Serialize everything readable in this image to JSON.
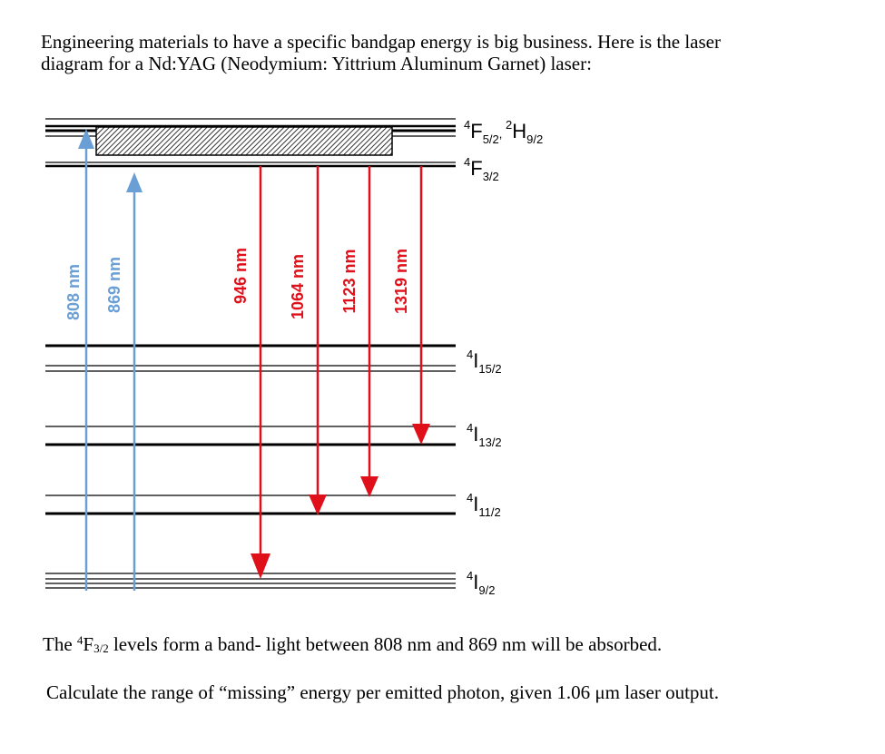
{
  "intro": {
    "line1": "Engineering materials to have a specific bandgap energy is big business.  Here is the laser",
    "line2": "diagram for a Nd:YAG (Neodymium: Yittrium Aluminum Garnet) laser:"
  },
  "diagram": {
    "colors": {
      "pump": "#6a9fd6",
      "emission": "#e0101a",
      "level": "#000000"
    },
    "levels": [
      {
        "sup": "4",
        "main": "F",
        "sub": "5/2",
        "sep": ", ",
        "sup2": "2",
        "main2": "H",
        "sub2": "9/2"
      },
      {
        "sup": "4",
        "main": "F",
        "sub": "3/2"
      },
      {
        "sup": "4",
        "main": "I",
        "sub": "15/2"
      },
      {
        "sup": "4",
        "main": "I",
        "sub": "13/2"
      },
      {
        "sup": "4",
        "main": "I",
        "sub": "11/2"
      },
      {
        "sup": "4",
        "main": "I",
        "sub": "9/2"
      }
    ],
    "pump_arrows": [
      {
        "label": "808 nm"
      },
      {
        "label": "869 nm"
      }
    ],
    "emission_arrows": [
      {
        "label": "946 nm"
      },
      {
        "label": "1064 nm"
      },
      {
        "label": "1123 nm"
      },
      {
        "label": "1319 nm"
      }
    ]
  },
  "caption": {
    "before": "The ",
    "sup": "4",
    "main": "F",
    "sub": "3/2",
    "after": " levels form a band- light between 808 nm and 869 nm will be absorbed."
  },
  "question": "Calculate the range of “missing” energy per emitted photon, given 1.06 μm laser output."
}
